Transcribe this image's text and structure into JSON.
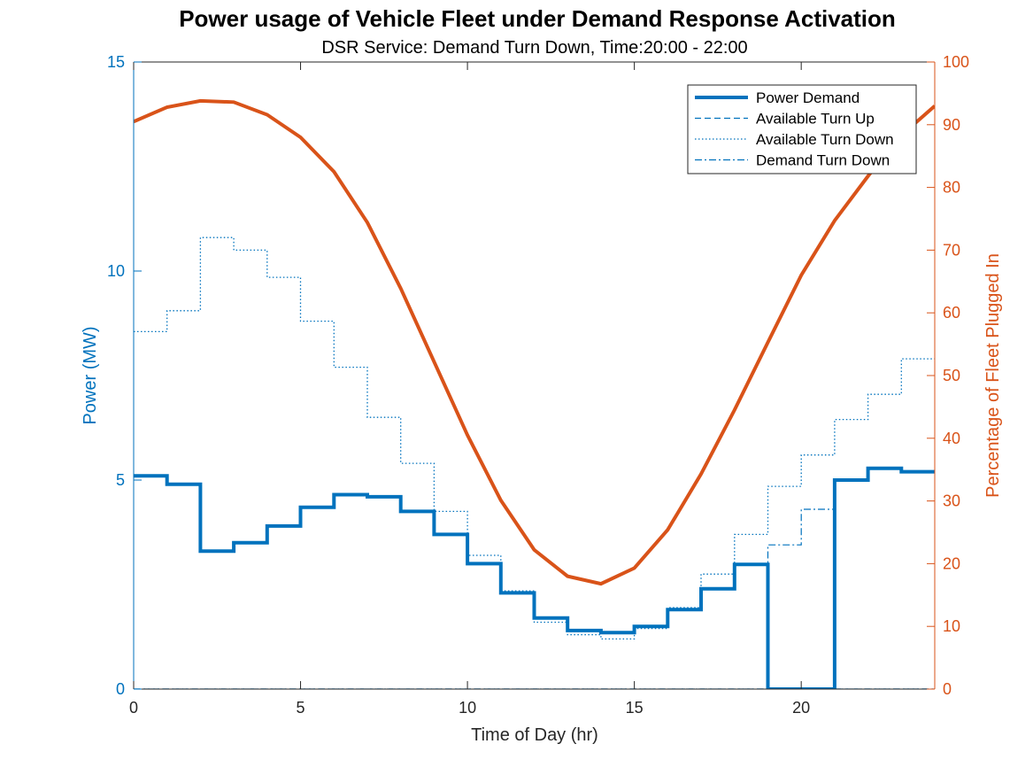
{
  "chart_data": {
    "type": "line",
    "title": "Power usage of Vehicle Fleet under Demand Response Activation",
    "subtitle": "DSR Service: Demand Turn Down, Time:20:00 - 22:00",
    "xlabel": "Time of Day (hr)",
    "ylabel_left": "Power (MW)",
    "ylabel_right": "Percentage of Fleet Plugged In",
    "xlim": [
      0,
      24
    ],
    "ylim_left": [
      0,
      15
    ],
    "ylim_right": [
      0,
      100
    ],
    "x_ticks": [
      "0",
      "5",
      "10",
      "15",
      "20"
    ],
    "y_left_ticks": [
      "0",
      "5",
      "10",
      "15"
    ],
    "y_right_ticks": [
      "0",
      "10",
      "20",
      "30",
      "40",
      "50",
      "60",
      "70",
      "80",
      "90",
      "100"
    ],
    "grid": false,
    "legend_position": "top-right",
    "colors": {
      "left_axis": "#0072BD",
      "right_axis": "#D95319",
      "axes_black": "#262626"
    },
    "series": [
      {
        "name": "Power Demand",
        "axis": "left",
        "style": "solid-thick-step",
        "x": [
          0,
          1,
          2,
          3,
          4,
          5,
          6,
          7,
          8,
          9,
          10,
          11,
          12,
          13,
          14,
          15,
          16,
          17,
          18,
          19,
          20,
          21,
          22,
          23
        ],
        "values": [
          5.1,
          4.9,
          3.3,
          3.5,
          3.9,
          4.35,
          4.65,
          4.6,
          4.25,
          3.7,
          3.0,
          2.3,
          1.7,
          1.4,
          1.35,
          1.5,
          1.9,
          2.4,
          2.98,
          0,
          0,
          5.0,
          5.28,
          5.2
        ]
      },
      {
        "name": "Available Turn Up",
        "axis": "left",
        "style": "dashed-step",
        "x": [
          0,
          24
        ],
        "values": [
          0,
          0
        ]
      },
      {
        "name": "Available Turn Down",
        "axis": "left",
        "style": "dotted-step",
        "x": [
          0,
          1,
          2,
          3,
          4,
          5,
          6,
          7,
          8,
          9,
          10,
          11,
          12,
          13,
          14,
          15,
          16,
          17,
          18,
          19,
          20,
          21,
          22,
          23
        ],
        "values": [
          8.55,
          9.05,
          10.8,
          10.5,
          9.85,
          8.8,
          7.7,
          6.5,
          5.4,
          4.25,
          3.2,
          2.35,
          1.6,
          1.3,
          1.2,
          1.45,
          1.95,
          2.75,
          3.7,
          4.85,
          5.6,
          6.45,
          7.05,
          7.9
        ]
      },
      {
        "name": "Demand Turn Down",
        "axis": "left",
        "style": "dashdot-step",
        "x": [
          0,
          19,
          20,
          21,
          24
        ],
        "values": [
          0,
          3.45,
          4.3,
          0,
          0
        ]
      },
      {
        "name": "Percentage of Fleet Plugged In",
        "axis": "right",
        "style": "solid-thick",
        "x": [
          0,
          1,
          2,
          3,
          4,
          5,
          6,
          7,
          8,
          9,
          10,
          11,
          12,
          13,
          14,
          15,
          16,
          17,
          18,
          19,
          20,
          21,
          22,
          23,
          24
        ],
        "values": [
          90.5,
          92.8,
          93.8,
          93.6,
          91.6,
          88.0,
          82.5,
          74.4,
          63.9,
          52.2,
          40.5,
          30.1,
          22.2,
          18.0,
          16.8,
          19.3,
          25.4,
          34.3,
          44.5,
          55.3,
          66.0,
          74.7,
          81.8,
          88.3,
          93.0
        ]
      }
    ],
    "legend_entries": [
      "Power Demand",
      "Available Turn Up",
      "Available Turn Down",
      "Demand Turn Down"
    ]
  }
}
